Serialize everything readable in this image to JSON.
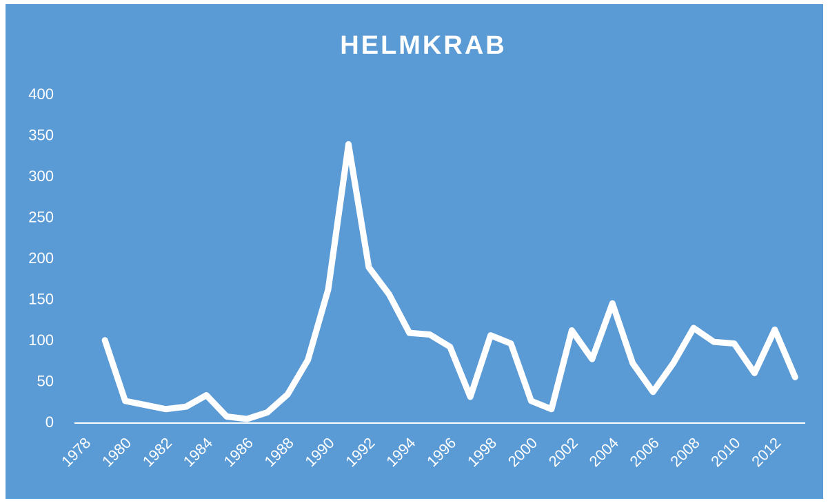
{
  "chart_data": {
    "type": "line",
    "title": "HELMKRAB",
    "categories": [
      "1978",
      null,
      "1980",
      null,
      "1982",
      null,
      "1984",
      null,
      "1986",
      null,
      "1988",
      null,
      "1990",
      null,
      "1992",
      null,
      "1994",
      null,
      "1996",
      null,
      "1998",
      null,
      "2000",
      null,
      "2002",
      null,
      "2004",
      null,
      "2006",
      null,
      "2008",
      null,
      "2010",
      null,
      "2012",
      null
    ],
    "series": [
      {
        "name": "HELMKRAB",
        "color": "#ffffff",
        "values": [
          null,
          101,
          27,
          22,
          17,
          20,
          34,
          8,
          5,
          13,
          35,
          77,
          163,
          340,
          190,
          157,
          110,
          108,
          93,
          32,
          107,
          97,
          27,
          17,
          113,
          78,
          146,
          73,
          38,
          73,
          116,
          99,
          97,
          61,
          114,
          56
        ]
      }
    ],
    "ylim": [
      0,
      400
    ],
    "yticks": [
      0,
      50,
      100,
      150,
      200,
      250,
      300,
      350,
      400
    ],
    "grid": false,
    "drop_lines": true
  }
}
